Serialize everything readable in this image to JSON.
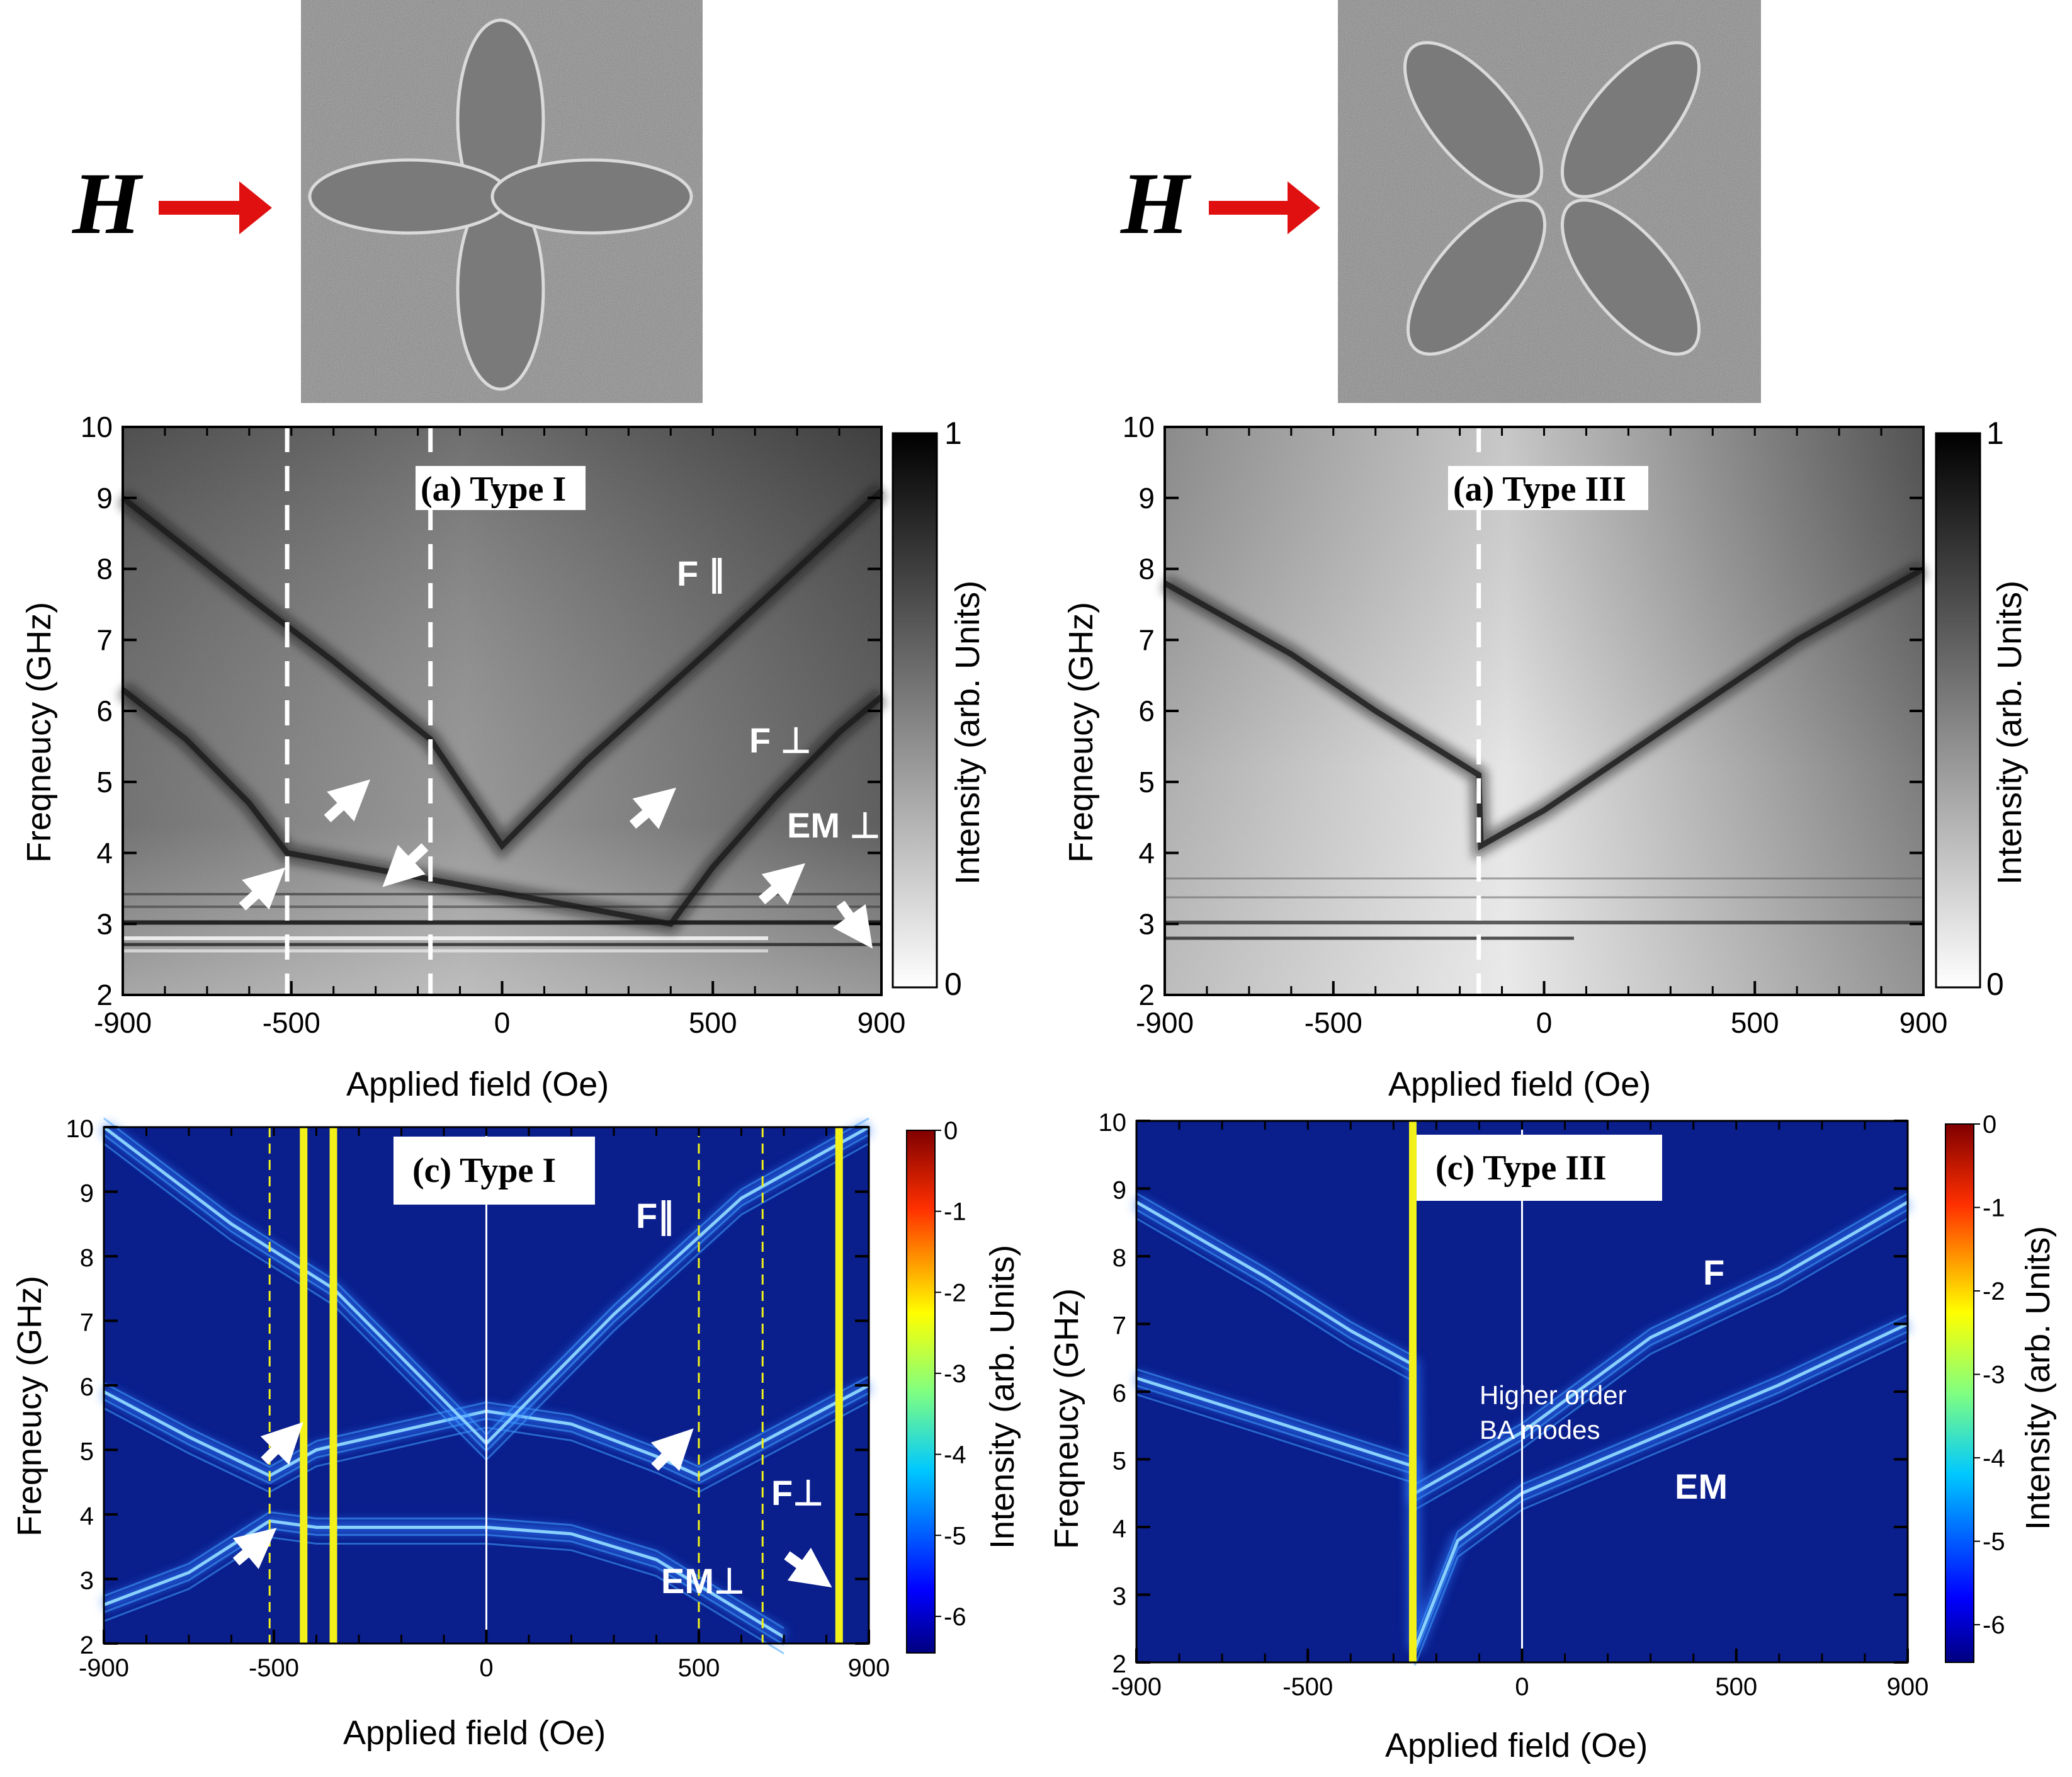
{
  "figure": {
    "field_symbol": "H",
    "colors": {
      "arrow_red": "#e01010",
      "track_yellow": "#f2f21a",
      "map_blue": "#0a1e8c"
    }
  },
  "chart_data": [
    {
      "type": "heatmap",
      "id": "a1",
      "title": "(a) Type I",
      "xlabel": "Applied field (Oe)",
      "ylabel": "Freqneucy (GHz)",
      "colorbar_label": "Intensity (arb. Units)",
      "colorbar_min_label": "0",
      "colorbar_max_label": "1",
      "colormap": "gray",
      "xlim": [
        -900,
        900
      ],
      "ylim": [
        2,
        10
      ],
      "xticks": [
        -900,
        -500,
        0,
        500,
        900
      ],
      "yticks": [
        2,
        3,
        4,
        5,
        6,
        7,
        8,
        9,
        10
      ],
      "annotations": [
        "F ∥",
        "F ⊥",
        "EM ⊥"
      ],
      "dashed_lines_x": [
        -510,
        -170
      ],
      "branches": [
        {
          "name": "F parallel",
          "points": [
            [
              -900,
              9.0
            ],
            [
              -600,
              7.6
            ],
            [
              -400,
              6.7
            ],
            [
              -170,
              5.6
            ],
            [
              0,
              4.1
            ],
            [
              200,
              5.3
            ],
            [
              500,
              6.9
            ],
            [
              700,
              8.0
            ],
            [
              900,
              9.1
            ]
          ]
        },
        {
          "name": "F perpendicular",
          "points": [
            [
              -900,
              6.3
            ],
            [
              -750,
              5.6
            ],
            [
              -600,
              4.7
            ],
            [
              -510,
              4.0
            ],
            [
              400,
              3.0
            ],
            [
              500,
              3.8
            ],
            [
              650,
              4.8
            ],
            [
              800,
              5.7
            ],
            [
              900,
              6.2
            ]
          ]
        }
      ]
    },
    {
      "type": "heatmap",
      "id": "a2",
      "title": "(a) Type III",
      "xlabel": "Applied field (Oe)",
      "ylabel": "Freqneucy (GHz)",
      "colorbar_label": "Intensity (arb. Units)",
      "colorbar_min_label": "0",
      "colorbar_max_label": "1",
      "colormap": "gray",
      "xlim": [
        -900,
        900
      ],
      "ylim": [
        2,
        10
      ],
      "xticks": [
        -900,
        -500,
        0,
        500,
        900
      ],
      "yticks": [
        2,
        3,
        4,
        5,
        6,
        7,
        8,
        9,
        10
      ],
      "dashed_lines_x": [
        -155
      ],
      "branches": [
        {
          "name": "F",
          "points": [
            [
              -900,
              7.8
            ],
            [
              -600,
              6.8
            ],
            [
              -400,
              6.0
            ],
            [
              -155,
              5.1
            ],
            [
              -150,
              4.1
            ],
            [
              0,
              4.6
            ],
            [
              300,
              5.8
            ],
            [
              600,
              7.0
            ],
            [
              900,
              8.0
            ]
          ]
        }
      ]
    },
    {
      "type": "heatmap",
      "id": "c1",
      "title": "(c) Type I",
      "xlabel": "Applied field (Oe)",
      "ylabel": "Freqneucy (GHz)",
      "colorbar_label": "Intensity (arb. Units)",
      "colorbar_ticks": [
        "0",
        "-1",
        "-2",
        "-3",
        "-4",
        "-5",
        "-6"
      ],
      "colormap": "jet",
      "xlim": [
        -900,
        900
      ],
      "ylim": [
        2,
        10
      ],
      "xticks": [
        -900,
        -500,
        0,
        500,
        900
      ],
      "yticks": [
        2,
        3,
        4,
        5,
        6,
        7,
        8,
        9,
        10
      ],
      "annotations": [
        "F∥",
        "F⊥",
        "EM⊥"
      ],
      "dashed_lines_x": [
        -510,
        500,
        650
      ],
      "solid_white_x": [
        0
      ],
      "yellow_lines_x": [
        -430,
        -360,
        830
      ],
      "branches": [
        {
          "name": "F perpendicular",
          "points": [
            [
              -900,
              5.9
            ],
            [
              -700,
              5.2
            ],
            [
              -510,
              4.6
            ],
            [
              -400,
              5.0
            ],
            [
              0,
              5.6
            ],
            [
              200,
              5.4
            ],
            [
              400,
              4.9
            ],
            [
              500,
              4.6
            ],
            [
              700,
              5.3
            ],
            [
              900,
              6.0
            ]
          ]
        },
        {
          "name": "EM perpendicular",
          "points": [
            [
              -900,
              2.6
            ],
            [
              -700,
              3.1
            ],
            [
              -510,
              3.9
            ],
            [
              -400,
              3.8
            ],
            [
              0,
              3.8
            ],
            [
              200,
              3.7
            ],
            [
              400,
              3.3
            ],
            [
              600,
              2.5
            ],
            [
              700,
              2.1
            ]
          ]
        },
        {
          "name": "F parallel",
          "points": [
            [
              -900,
              10.0
            ],
            [
              -600,
              8.5
            ],
            [
              -360,
              7.5
            ],
            [
              0,
              5.1
            ],
            [
              300,
              7.1
            ],
            [
              600,
              8.9
            ],
            [
              900,
              10.0
            ]
          ]
        }
      ]
    },
    {
      "type": "heatmap",
      "id": "c2",
      "title": "(c) Type III",
      "xlabel": "Applied field (Oe)",
      "ylabel": "Freqneucy (GHz)",
      "colorbar_label": "Intensity (arb. Units)",
      "colorbar_ticks": [
        "0",
        "-1",
        "-2",
        "-3",
        "-4",
        "-5",
        "-6"
      ],
      "colormap": "jet",
      "xlim": [
        -900,
        900
      ],
      "ylim": [
        2,
        10
      ],
      "xticks": [
        -900,
        -500,
        0,
        500,
        900
      ],
      "yticks": [
        2,
        3,
        4,
        5,
        6,
        7,
        8,
        9,
        10
      ],
      "annotations": [
        "F",
        "Higher order",
        "BA modes",
        "EM"
      ],
      "solid_white_x": [
        0
      ],
      "yellow_lines_x": [
        -255
      ],
      "branches": [
        {
          "name": "F",
          "points": [
            [
              -900,
              8.8
            ],
            [
              -600,
              7.7
            ],
            [
              -400,
              6.9
            ],
            [
              -255,
              6.4
            ],
            [
              -250,
              4.5
            ],
            [
              0,
              5.4
            ],
            [
              300,
              6.8
            ],
            [
              600,
              7.7
            ],
            [
              900,
              8.8
            ]
          ]
        },
        {
          "name": "EM",
          "points": [
            [
              -900,
              6.2
            ],
            [
              -600,
              5.6
            ],
            [
              -255,
              4.9
            ],
            [
              -250,
              2.2
            ],
            [
              -150,
              3.8
            ],
            [
              0,
              4.5
            ],
            [
              300,
              5.3
            ],
            [
              600,
              6.1
            ],
            [
              900,
              7.0
            ]
          ]
        }
      ]
    }
  ]
}
